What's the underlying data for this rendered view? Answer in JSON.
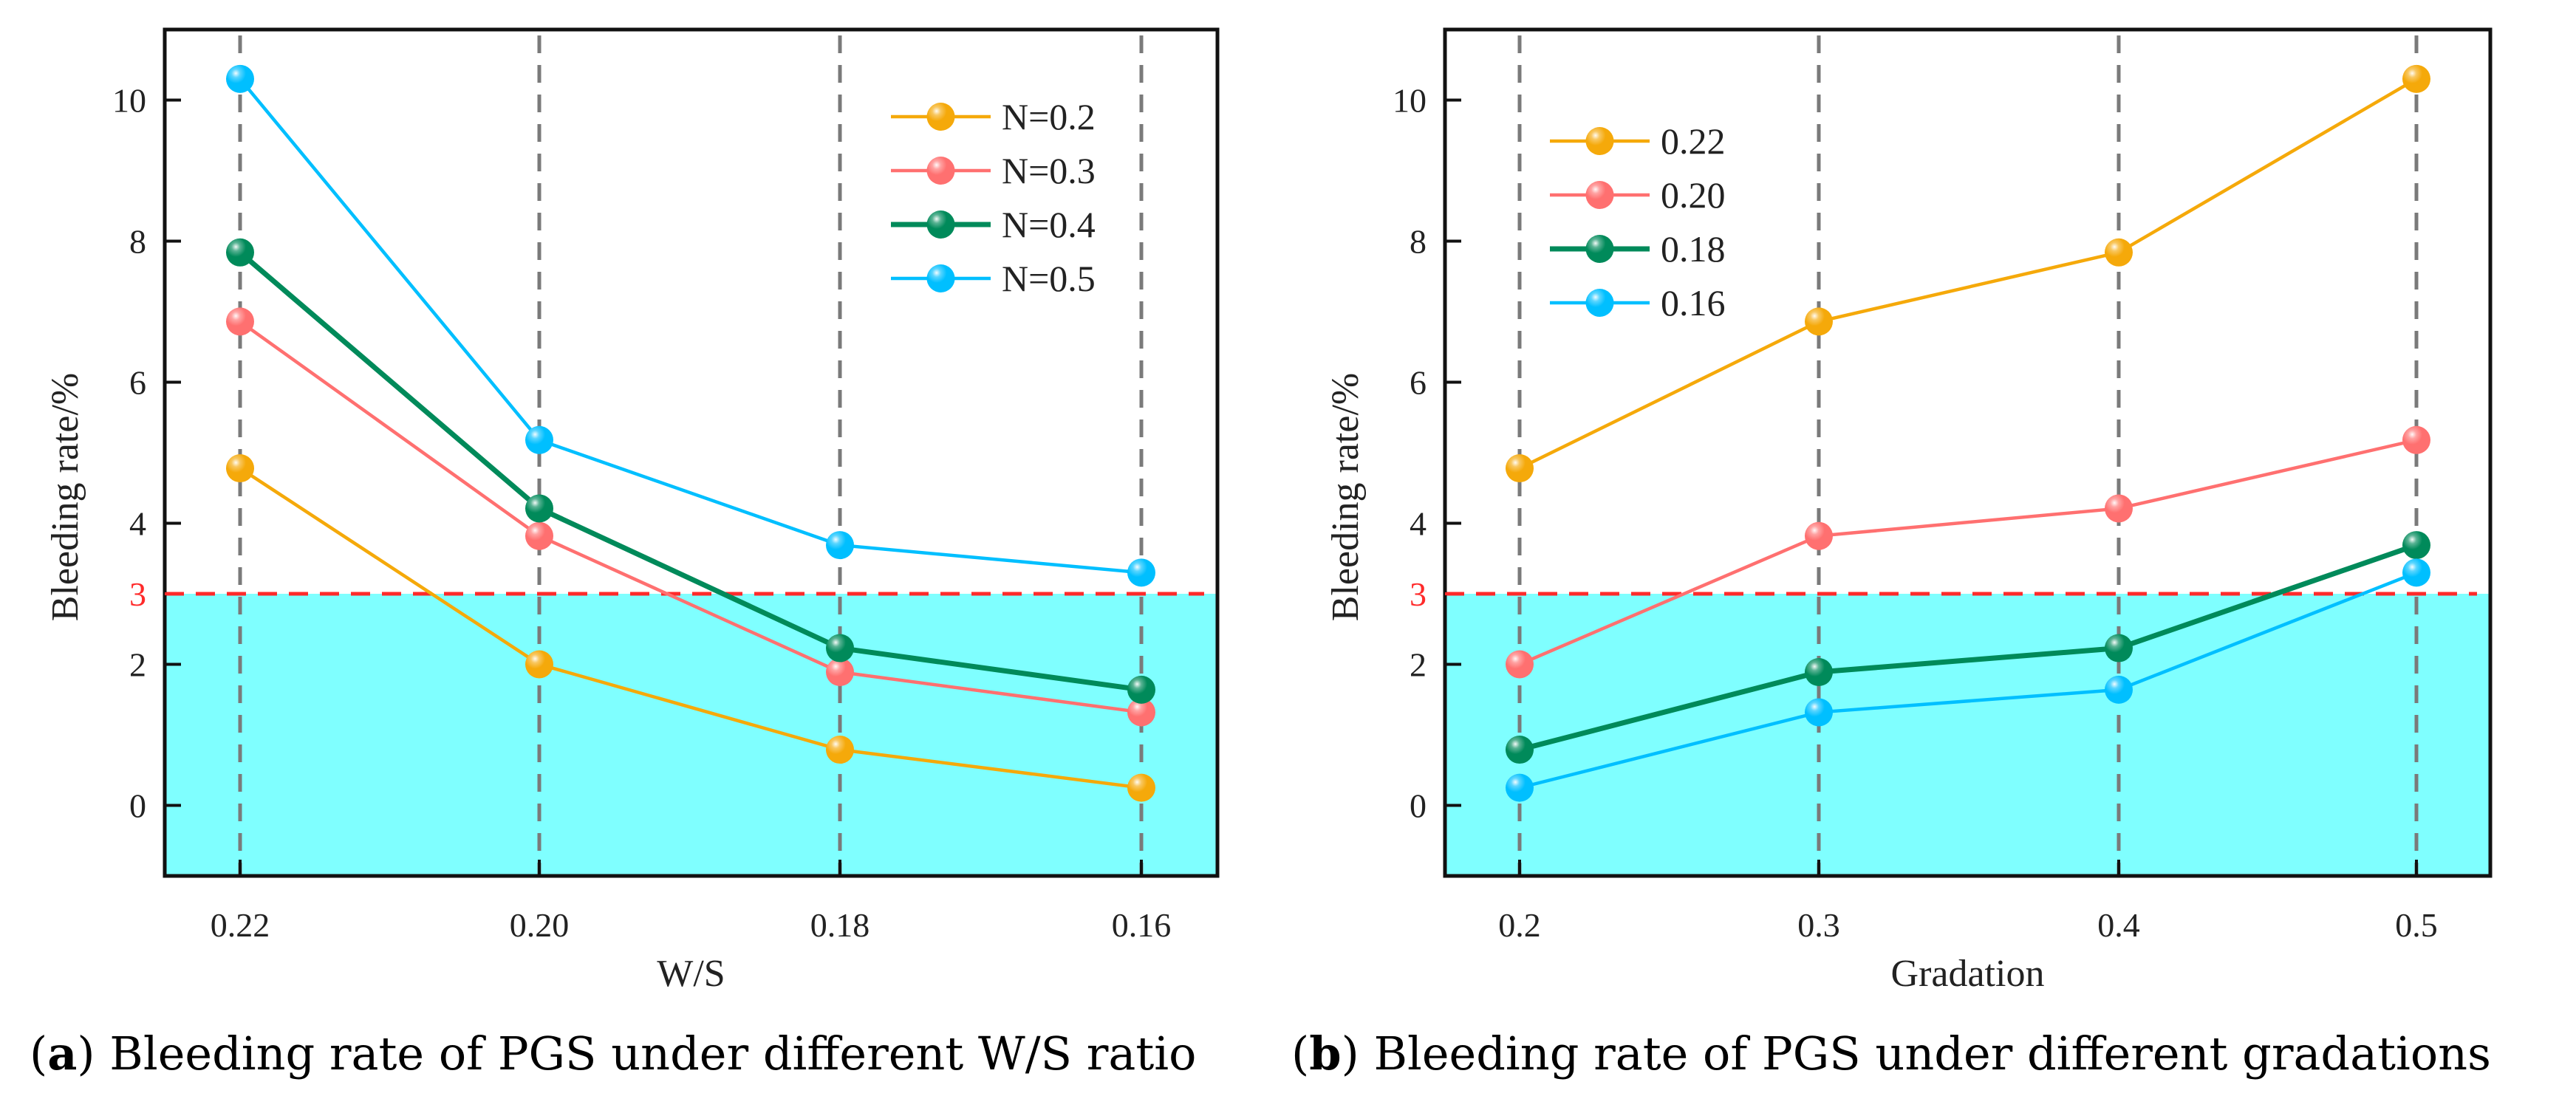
{
  "chart_data": [
    {
      "type": "line",
      "panel": "a",
      "caption_letter": "a",
      "caption_text": "Bleeding rate of PGS under different W/S ratio",
      "xlabel": "W/S",
      "ylabel": "Bleeding rate/%",
      "categories": [
        "0.22",
        "0.20",
        "0.18",
        "0.16"
      ],
      "ylim": [
        -1,
        11
      ],
      "yticks": [
        0,
        2,
        4,
        6,
        8,
        10
      ],
      "threshold": {
        "value": 3,
        "label": "3",
        "color": "#ff2a2a",
        "fill_below": "#7fffff"
      },
      "grid": "vertical dashed at categories",
      "legend_position": "top-right",
      "series": [
        {
          "name": "N=0.2",
          "color": "#f5a90a",
          "values": [
            4.78,
            2.0,
            0.79,
            0.25
          ]
        },
        {
          "name": "N=0.3",
          "color": "#ff7070",
          "values": [
            6.86,
            3.82,
            1.89,
            1.32
          ]
        },
        {
          "name": "N=0.4",
          "color": "#008a5a",
          "values": [
            7.84,
            4.21,
            2.23,
            1.64
          ]
        },
        {
          "name": "N=0.5",
          "color": "#00bfff",
          "values": [
            10.3,
            5.18,
            3.69,
            3.3
          ]
        }
      ]
    },
    {
      "type": "line",
      "panel": "b",
      "caption_letter": "b",
      "caption_text": "Bleeding rate of PGS under different gradations",
      "xlabel": "Gradation",
      "ylabel": "Bleeding rate/%",
      "categories": [
        "0.2",
        "0.3",
        "0.4",
        "0.5"
      ],
      "ylim": [
        -1,
        11
      ],
      "yticks": [
        0,
        2,
        4,
        6,
        8,
        10
      ],
      "threshold": {
        "value": 3,
        "label": "3",
        "color": "#ff2a2a",
        "fill_below": "#7fffff"
      },
      "grid": "vertical dashed at categories",
      "legend_position": "top-left",
      "series": [
        {
          "name": "0.22",
          "color": "#f5a90a",
          "values": [
            4.78,
            6.86,
            7.84,
            10.3
          ]
        },
        {
          "name": "0.20",
          "color": "#ff7070",
          "values": [
            2.0,
            3.82,
            4.21,
            5.18
          ]
        },
        {
          "name": "0.18",
          "color": "#008a5a",
          "values": [
            0.79,
            1.89,
            2.23,
            3.69
          ]
        },
        {
          "name": "0.16",
          "color": "#00bfff",
          "values": [
            0.25,
            1.32,
            1.64,
            3.3
          ]
        }
      ]
    }
  ]
}
